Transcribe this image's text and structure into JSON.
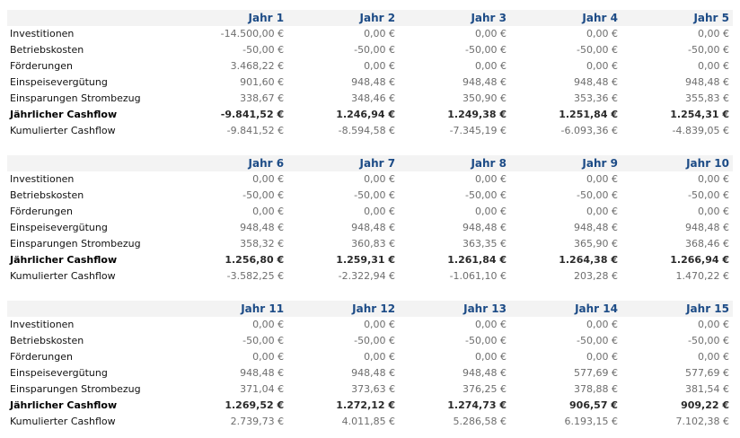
{
  "row_labels": [
    "Investitionen",
    "Betriebskosten",
    "Förderungen",
    "Einspeisevergütung",
    "Einsparungen Strombezug",
    "Jährlicher Cashflow",
    "Kumulierter Cashflow"
  ],
  "tables": [
    {
      "years": [
        "Jahr 1",
        "Jahr 2",
        "Jahr 3",
        "Jahr 4",
        "Jahr 5"
      ],
      "rows": [
        [
          "-14.500,00 €",
          "0,00 €",
          "0,00 €",
          "0,00 €",
          "0,00 €"
        ],
        [
          "-50,00 €",
          "-50,00 €",
          "-50,00 €",
          "-50,00 €",
          "-50,00 €"
        ],
        [
          "3.468,22 €",
          "0,00 €",
          "0,00 €",
          "0,00 €",
          "0,00 €"
        ],
        [
          "901,60 €",
          "948,48 €",
          "948,48 €",
          "948,48 €",
          "948,48 €"
        ],
        [
          "338,67 €",
          "348,46 €",
          "350,90 €",
          "353,36 €",
          "355,83 €"
        ],
        [
          "-9.841,52 €",
          "1.246,94 €",
          "1.249,38 €",
          "1.251,84 €",
          "1.254,31 €"
        ],
        [
          "-9.841,52 €",
          "-8.594,58 €",
          "-7.345,19 €",
          "-6.093,36 €",
          "-4.839,05 €"
        ]
      ]
    },
    {
      "years": [
        "Jahr 6",
        "Jahr 7",
        "Jahr 8",
        "Jahr 9",
        "Jahr 10"
      ],
      "rows": [
        [
          "0,00 €",
          "0,00 €",
          "0,00 €",
          "0,00 €",
          "0,00 €"
        ],
        [
          "-50,00 €",
          "-50,00 €",
          "-50,00 €",
          "-50,00 €",
          "-50,00 €"
        ],
        [
          "0,00 €",
          "0,00 €",
          "0,00 €",
          "0,00 €",
          "0,00 €"
        ],
        [
          "948,48 €",
          "948,48 €",
          "948,48 €",
          "948,48 €",
          "948,48 €"
        ],
        [
          "358,32 €",
          "360,83 €",
          "363,35 €",
          "365,90 €",
          "368,46 €"
        ],
        [
          "1.256,80 €",
          "1.259,31 €",
          "1.261,84 €",
          "1.264,38 €",
          "1.266,94 €"
        ],
        [
          "-3.582,25 €",
          "-2.322,94 €",
          "-1.061,10 €",
          "203,28 €",
          "1.470,22 €"
        ]
      ]
    },
    {
      "years": [
        "Jahr 11",
        "Jahr 12",
        "Jahr 13",
        "Jahr 14",
        "Jahr 15"
      ],
      "rows": [
        [
          "0,00 €",
          "0,00 €",
          "0,00 €",
          "0,00 €",
          "0,00 €"
        ],
        [
          "-50,00 €",
          "-50,00 €",
          "-50,00 €",
          "-50,00 €",
          "-50,00 €"
        ],
        [
          "0,00 €",
          "0,00 €",
          "0,00 €",
          "0,00 €",
          "0,00 €"
        ],
        [
          "948,48 €",
          "948,48 €",
          "948,48 €",
          "577,69 €",
          "577,69 €"
        ],
        [
          "371,04 €",
          "373,63 €",
          "376,25 €",
          "378,88 €",
          "381,54 €"
        ],
        [
          "1.269,52 €",
          "1.272,12 €",
          "1.274,73 €",
          "906,57 €",
          "909,22 €"
        ],
        [
          "2.739,73 €",
          "4.011,85 €",
          "5.286,58 €",
          "6.193,15 €",
          "7.102,38 €"
        ]
      ]
    }
  ]
}
